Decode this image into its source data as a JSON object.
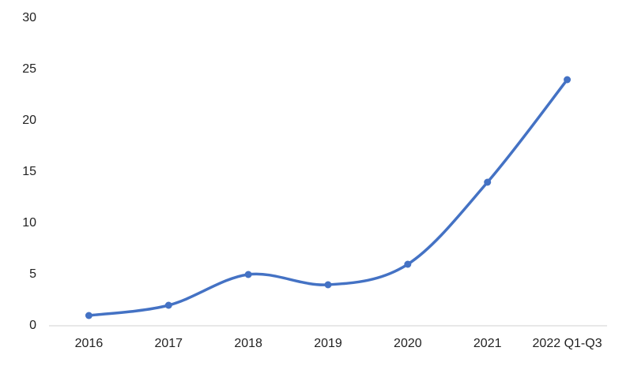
{
  "chart_data": {
    "type": "line",
    "categories": [
      "2016",
      "2017",
      "2018",
      "2019",
      "2020",
      "2021",
      "2022 Q1-Q3"
    ],
    "series": [
      {
        "color": "#4472c4",
        "values": [
          1,
          2,
          5,
          4,
          6,
          14,
          24
        ]
      }
    ],
    "ylim": [
      0,
      30
    ],
    "yticks": [
      0,
      5,
      10,
      15,
      20,
      25,
      30
    ],
    "grid": false,
    "smooth": true,
    "markers": true
  }
}
